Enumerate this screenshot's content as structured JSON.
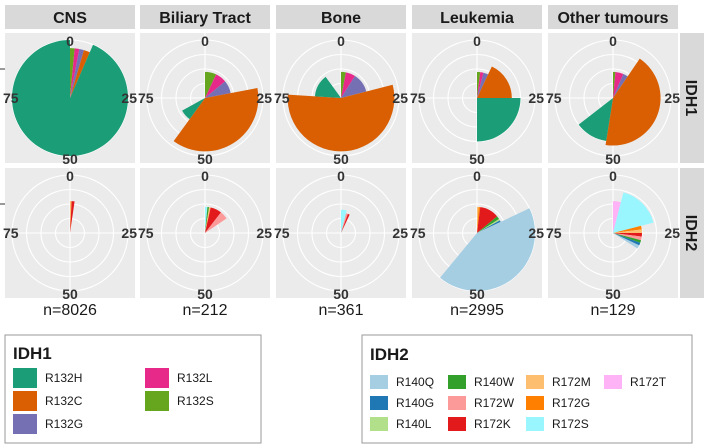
{
  "chart_data": {
    "type": "pie",
    "title": "",
    "columns": [
      "CNS",
      "Biliary Tract",
      "Bone",
      "Leukemia",
      "Other tumours"
    ],
    "rows": [
      "IDH1",
      "IDH2"
    ],
    "sample_sizes": [
      "n=8026",
      "n=212",
      "n=361",
      "n=2995",
      "n=129"
    ],
    "radial_ticks": [
      "0",
      "25",
      "50",
      "75"
    ],
    "axis_max": 100,
    "colors": {
      "R132H": "#1b9e77",
      "R132C": "#d95f02",
      "R132G": "#7570b3",
      "R132L": "#e7298a",
      "R132S": "#66a61e",
      "R140Q": "#a6cee3",
      "R140G": "#1f78b4",
      "R140L": "#b2df8a",
      "R140W": "#33a02c",
      "R172W": "#fb9a99",
      "R172K": "#e31a1c",
      "R172M": "#fdbf6f",
      "R172G": "#ff7f00",
      "R172S": "#99f6ff",
      "R172T": "#ffb3f7"
    },
    "panels": [
      {
        "row": "IDH1",
        "column": "CNS",
        "slices": [
          {
            "label": "R132S",
            "value": 1.5,
            "radius": 0.86
          },
          {
            "label": "R132L",
            "value": 1.5,
            "radius": 0.86
          },
          {
            "label": "R132G",
            "value": 1.5,
            "radius": 0.86
          },
          {
            "label": "R132C",
            "value": 2.0,
            "radius": 0.86
          },
          {
            "label": "R132H",
            "value": 93.5,
            "radius": 1.0
          }
        ]
      },
      {
        "row": "IDH2",
        "column": "CNS",
        "slices": [
          {
            "label": "R172M",
            "value": 0.8,
            "radius": 0.55
          },
          {
            "label": "R172K",
            "value": 1.5,
            "radius": 0.55
          }
        ]
      },
      {
        "row": "IDH1",
        "column": "Biliary Tract",
        "slices": [
          {
            "label": "R132S",
            "value": 7,
            "radius": 0.45
          },
          {
            "label": "R132L",
            "value": 7,
            "radius": 0.45
          },
          {
            "label": "R132G",
            "value": 8,
            "radius": 0.45
          },
          {
            "label": "R132C",
            "value": 38,
            "radius": 0.92
          },
          {
            "label": "R132H",
            "value": 7,
            "radius": 0.45
          }
        ]
      },
      {
        "row": "IDH2",
        "column": "Biliary Tract",
        "slices": [
          {
            "label": "R172S",
            "value": 1.5,
            "radius": 0.45
          },
          {
            "label": "R140W",
            "value": 1.0,
            "radius": 0.45
          },
          {
            "label": "R172M",
            "value": 1.0,
            "radius": 0.45
          },
          {
            "label": "R172K",
            "value": 7,
            "radius": 0.45
          },
          {
            "label": "R172W",
            "value": 5,
            "radius": 0.45
          }
        ]
      },
      {
        "row": "IDH1",
        "column": "Bone",
        "slices": [
          {
            "label": "R132S",
            "value": 3,
            "radius": 0.45
          },
          {
            "label": "R132L",
            "value": 6,
            "radius": 0.45
          },
          {
            "label": "R132G",
            "value": 12,
            "radius": 0.45
          },
          {
            "label": "R132C",
            "value": 55,
            "radius": 0.92
          },
          {
            "label": "R132H",
            "value": 14,
            "radius": 0.45
          }
        ]
      },
      {
        "row": "IDH2",
        "column": "Bone",
        "slices": [
          {
            "label": "R172S",
            "value": 4,
            "radius": 0.4
          },
          {
            "label": "R172W",
            "value": 1.5,
            "radius": 0.35
          },
          {
            "label": "R172K",
            "value": 1.5,
            "radius": 0.35
          }
        ]
      },
      {
        "row": "IDH1",
        "column": "Leukemia",
        "slices": [
          {
            "label": "R132S",
            "value": 2,
            "radius": 0.45
          },
          {
            "label": "R132L",
            "value": 2,
            "radius": 0.45
          },
          {
            "label": "R132G",
            "value": 3,
            "radius": 0.45
          },
          {
            "label": "R132C",
            "value": 18,
            "radius": 0.6
          },
          {
            "label": "R132H",
            "value": 25,
            "radius": 0.75
          }
        ]
      },
      {
        "row": "IDH2",
        "column": "Leukemia",
        "slices": [
          {
            "label": "R172M",
            "value": 1,
            "radius": 0.45
          },
          {
            "label": "R172G",
            "value": 1,
            "radius": 0.45
          },
          {
            "label": "R172K",
            "value": 12,
            "radius": 0.45
          },
          {
            "label": "R140W",
            "value": 2,
            "radius": 0.45
          },
          {
            "label": "R140L",
            "value": 1,
            "radius": 0.45
          },
          {
            "label": "R140G",
            "value": 1,
            "radius": 0.45
          },
          {
            "label": "R140Q",
            "value": 43,
            "radius": 1.0
          }
        ]
      },
      {
        "row": "IDH1",
        "column": "Other tumours",
        "slices": [
          {
            "label": "R132S",
            "value": 1.5,
            "radius": 0.45
          },
          {
            "label": "R132L",
            "value": 5,
            "radius": 0.45
          },
          {
            "label": "R132G",
            "value": 3,
            "radius": 0.45
          },
          {
            "label": "R132C",
            "value": 43,
            "radius": 0.82
          },
          {
            "label": "R132H",
            "value": 12,
            "radius": 0.75
          }
        ]
      },
      {
        "row": "IDH2",
        "column": "Other tumours",
        "slices": [
          {
            "label": "R172T",
            "value": 4,
            "radius": 0.55
          },
          {
            "label": "R172S",
            "value": 17,
            "radius": 0.72
          },
          {
            "label": "R172G",
            "value": 2,
            "radius": 0.5
          },
          {
            "label": "R172M",
            "value": 2,
            "radius": 0.5
          },
          {
            "label": "R172K",
            "value": 2,
            "radius": 0.5
          },
          {
            "label": "R172W",
            "value": 2,
            "radius": 0.5
          },
          {
            "label": "R140W",
            "value": 1.5,
            "radius": 0.5
          },
          {
            "label": "R140G",
            "value": 1.5,
            "radius": 0.5
          },
          {
            "label": "R140Q",
            "value": 2,
            "radius": 0.5
          }
        ]
      }
    ],
    "legends": [
      {
        "title": "IDH1",
        "items": [
          "R132H",
          "R132C",
          "R132G",
          "R132L",
          "R132S"
        ]
      },
      {
        "title": "IDH2",
        "items": [
          "R140Q",
          "R140G",
          "R140L",
          "R140W",
          "R172W",
          "R172K",
          "R172M",
          "R172G",
          "R172S",
          "R172T"
        ]
      }
    ]
  }
}
